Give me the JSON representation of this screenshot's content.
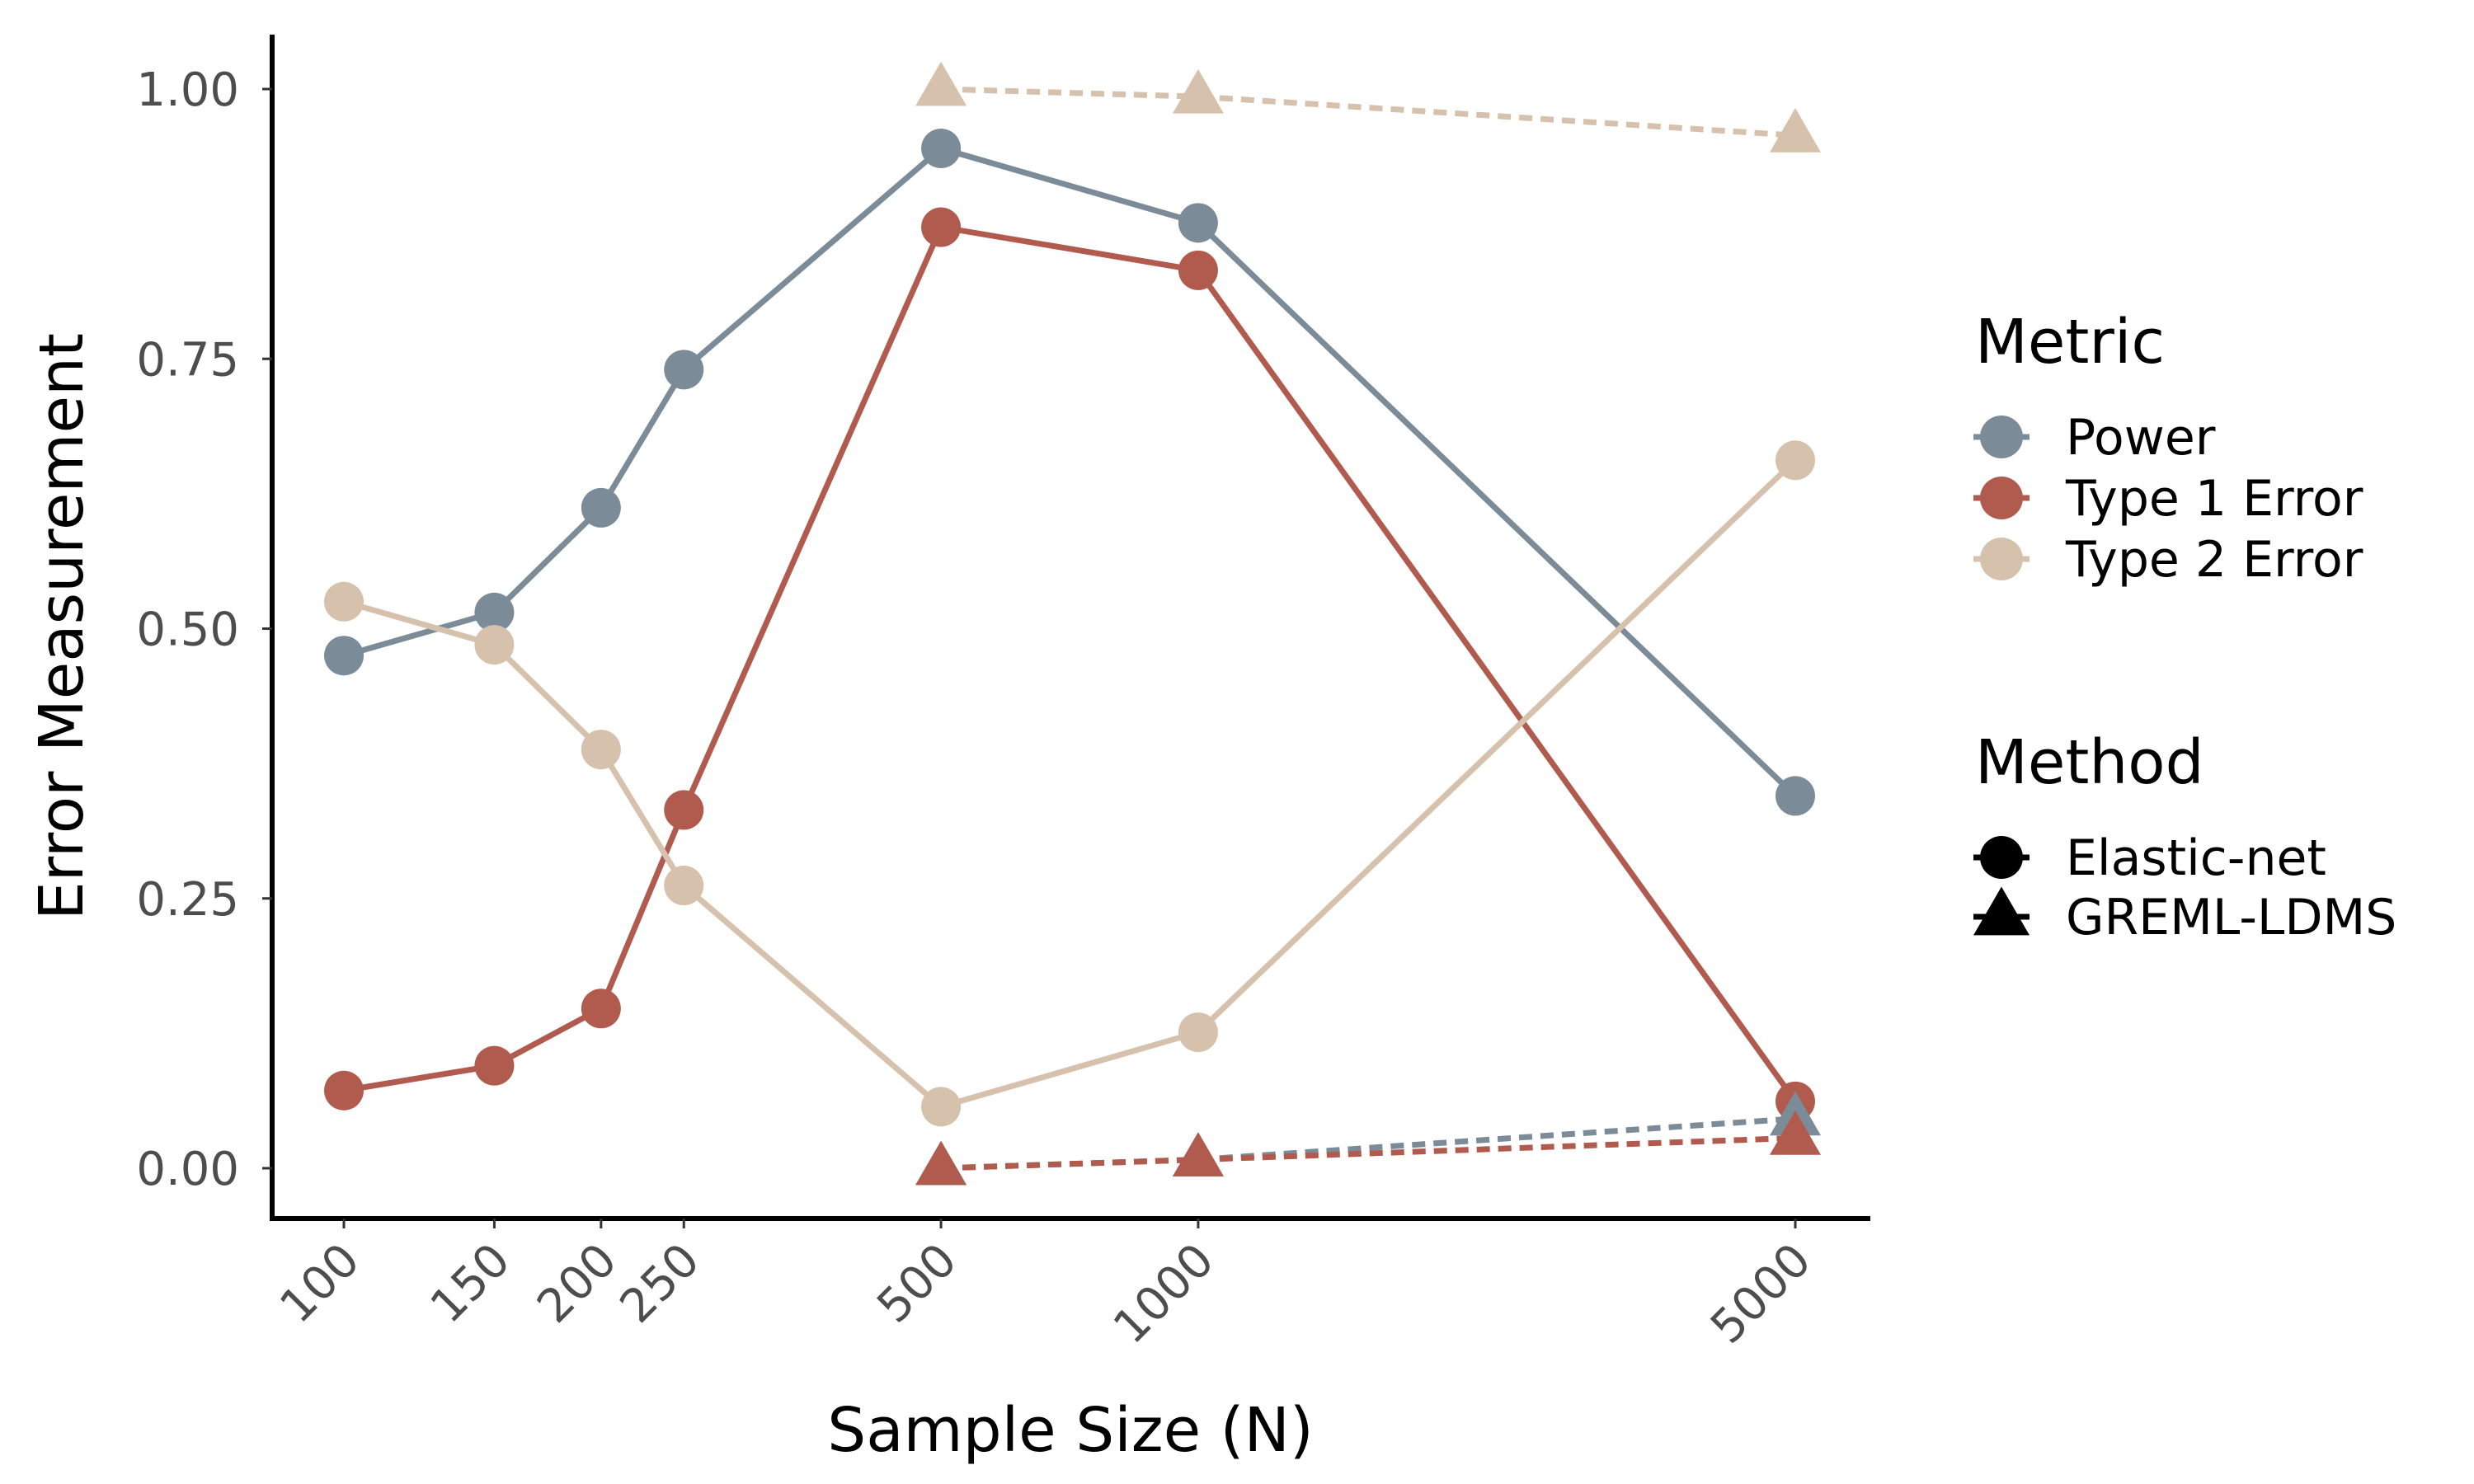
{
  "chart_data": {
    "type": "line",
    "xlabel": "Sample Size (N)",
    "ylabel": "Error Measurement",
    "x_scale": "log",
    "x_ticks": [
      "100",
      "150",
      "200",
      "250",
      "500",
      "1000",
      "5000"
    ],
    "y_ticks": [
      "0.00",
      "0.25",
      "0.50",
      "0.75",
      "1.00"
    ],
    "ylim": [
      -0.05,
      1.05
    ],
    "grid": false,
    "legend_position": "right",
    "legends": {
      "metric": {
        "title": "Metric",
        "entries": [
          {
            "label": "Power",
            "color": "#7B8B98"
          },
          {
            "label": "Type 1 Error",
            "color": "#B05B4E"
          },
          {
            "label": "Type 2 Error",
            "color": "#D6C1AC"
          }
        ]
      },
      "method": {
        "title": "Method",
        "entries": [
          {
            "label": "Elastic-net",
            "marker": "circle",
            "line": "solid"
          },
          {
            "label": "GREML-LDMS",
            "marker": "triangle",
            "line": "dashed"
          }
        ]
      }
    },
    "series": [
      {
        "metric": "Power",
        "method": "Elastic-net",
        "color": "#7B8B98",
        "marker": "circle",
        "dash": false,
        "x": [
          100,
          150,
          200,
          250,
          500,
          1000,
          5000
        ],
        "y": [
          0.475,
          0.515,
          0.612,
          0.74,
          0.945,
          0.876,
          0.345
        ]
      },
      {
        "metric": "Type 1 Error",
        "method": "Elastic-net",
        "color": "#B05B4E",
        "marker": "circle",
        "dash": false,
        "x": [
          100,
          150,
          200,
          250,
          500,
          1000,
          5000
        ],
        "y": [
          0.072,
          0.095,
          0.148,
          0.332,
          0.872,
          0.832,
          0.062
        ]
      },
      {
        "metric": "Type 2 Error",
        "method": "Elastic-net",
        "color": "#D6C1AC",
        "marker": "circle",
        "dash": false,
        "x": [
          100,
          150,
          200,
          250,
          500,
          1000,
          5000
        ],
        "y": [
          0.525,
          0.485,
          0.388,
          0.262,
          0.057,
          0.126,
          0.656
        ]
      },
      {
        "metric": "Type 2 Error",
        "method": "GREML-LDMS",
        "color": "#D6C1AC",
        "marker": "triangle",
        "dash": true,
        "x": [
          500,
          1000,
          5000
        ],
        "y": [
          1.0,
          0.993,
          0.957
        ]
      },
      {
        "metric": "Power",
        "method": "GREML-LDMS",
        "color": "#7B8B98",
        "marker": "triangle",
        "dash": true,
        "x": [
          500,
          1000,
          5000
        ],
        "y": [
          0.0,
          0.008,
          0.046
        ]
      },
      {
        "metric": "Type 1 Error",
        "method": "GREML-LDMS",
        "color": "#B05B4E",
        "marker": "triangle",
        "dash": true,
        "x": [
          500,
          1000,
          5000
        ],
        "y": [
          0.0,
          0.008,
          0.028
        ]
      }
    ]
  }
}
